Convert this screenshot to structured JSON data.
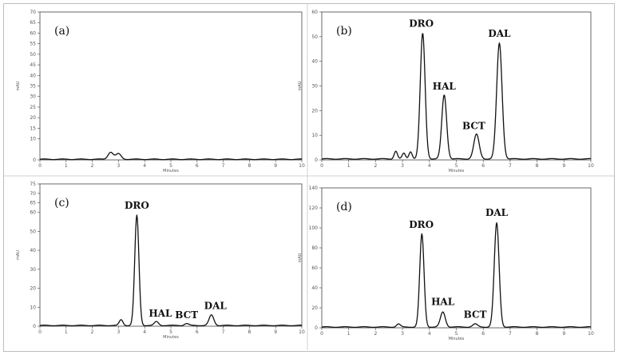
{
  "chart_data": [
    {
      "panel": "(a)",
      "type": "line",
      "xlabel": "Minutes",
      "ylabel": "mAU",
      "xlim": [
        0,
        10
      ],
      "ylim": [
        0,
        70
      ],
      "xticks": [
        0,
        1,
        2,
        3,
        4,
        5,
        6,
        7,
        8,
        9,
        10
      ],
      "yticks": [
        0,
        10,
        15,
        20,
        25,
        30,
        35,
        40,
        45,
        50,
        55,
        60,
        65,
        70
      ],
      "baseline": 0.3,
      "peaks": [
        {
          "name": "",
          "x": 2.7,
          "height": 3.4,
          "width": 0.1
        },
        {
          "name": "",
          "x": 3.0,
          "height": 2.6,
          "width": 0.1
        }
      ],
      "peak_labels": []
    },
    {
      "panel": "(b)",
      "type": "line",
      "xlabel": "Minutes",
      "ylabel": "mAU",
      "xlim": [
        0,
        10
      ],
      "ylim": [
        0,
        60
      ],
      "xticks": [
        0,
        1,
        2,
        3,
        4,
        5,
        6,
        7,
        8,
        9,
        10
      ],
      "yticks": [
        0,
        10,
        20,
        30,
        40,
        50,
        60
      ],
      "baseline": 0.4,
      "peaks": [
        {
          "name": "",
          "x": 2.75,
          "height": 3.2,
          "width": 0.06
        },
        {
          "name": "",
          "x": 3.05,
          "height": 2.3,
          "width": 0.06
        },
        {
          "name": "",
          "x": 3.3,
          "height": 3.0,
          "width": 0.06
        },
        {
          "name": "DRO",
          "x": 3.75,
          "height": 51.0,
          "width": 0.09
        },
        {
          "name": "HAL",
          "x": 4.55,
          "height": 26.0,
          "width": 0.09
        },
        {
          "name": "BCT",
          "x": 5.75,
          "height": 10.0,
          "width": 0.1
        },
        {
          "name": "DAL",
          "x": 6.6,
          "height": 47.0,
          "width": 0.1
        }
      ],
      "peak_labels": [
        {
          "text": "DRO",
          "x": 3.7,
          "y": 54
        },
        {
          "text": "HAL",
          "x": 4.55,
          "y": 28.5
        },
        {
          "text": "BCT",
          "x": 5.65,
          "y": 12.5
        },
        {
          "text": "DAL",
          "x": 6.6,
          "y": 50
        }
      ]
    },
    {
      "panel": "(c)",
      "type": "line",
      "xlabel": "Minutes",
      "ylabel": "mAU",
      "xlim": [
        0,
        10
      ],
      "ylim": [
        0,
        75
      ],
      "xticks": [
        0,
        1,
        2,
        3,
        4,
        5,
        6,
        7,
        8,
        9,
        10
      ],
      "yticks": [
        0,
        10,
        20,
        30,
        40,
        50,
        60,
        65,
        70,
        75
      ],
      "baseline": 0.4,
      "peaks": [
        {
          "name": "",
          "x": 3.1,
          "height": 3.0,
          "width": 0.07
        },
        {
          "name": "DRO",
          "x": 3.7,
          "height": 58.0,
          "width": 0.08
        },
        {
          "name": "HAL",
          "x": 4.45,
          "height": 2.0,
          "width": 0.08
        },
        {
          "name": "BCT",
          "x": 5.6,
          "height": 1.0,
          "width": 0.08
        },
        {
          "name": "DAL",
          "x": 6.55,
          "height": 5.5,
          "width": 0.09
        }
      ],
      "peak_labels": [
        {
          "text": "DRO",
          "x": 3.7,
          "y": 62
        },
        {
          "text": "HAL",
          "x": 4.6,
          "y": 5
        },
        {
          "text": "BCT",
          "x": 5.6,
          "y": 4.2
        },
        {
          "text": "DAL",
          "x": 6.7,
          "y": 9
        }
      ]
    },
    {
      "panel": "(d)",
      "type": "line",
      "xlabel": "Minutes",
      "ylabel": "mAU",
      "xlim": [
        0,
        10
      ],
      "ylim": [
        0,
        140
      ],
      "xticks": [
        0,
        1,
        2,
        3,
        4,
        5,
        6,
        7,
        8,
        9,
        10
      ],
      "yticks": [
        0,
        20,
        40,
        60,
        80,
        100,
        120,
        140
      ],
      "baseline": 0.8,
      "peaks": [
        {
          "name": "",
          "x": 2.85,
          "height": 3.0,
          "width": 0.07
        },
        {
          "name": "DRO",
          "x": 3.72,
          "height": 93.0,
          "width": 0.08
        },
        {
          "name": "HAL",
          "x": 4.5,
          "height": 15.0,
          "width": 0.09
        },
        {
          "name": "BCT",
          "x": 5.7,
          "height": 3.0,
          "width": 0.09
        },
        {
          "name": "DAL",
          "x": 6.5,
          "height": 104.0,
          "width": 0.09
        }
      ],
      "peak_labels": [
        {
          "text": "DRO",
          "x": 3.7,
          "y": 100
        },
        {
          "text": "HAL",
          "x": 4.5,
          "y": 23
        },
        {
          "text": "BCT",
          "x": 5.7,
          "y": 10
        },
        {
          "text": "DAL",
          "x": 6.5,
          "y": 112
        }
      ]
    }
  ]
}
